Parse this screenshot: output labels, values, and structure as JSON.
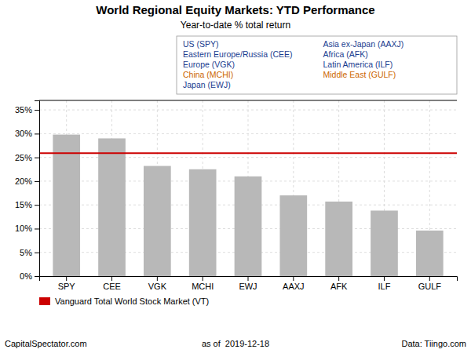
{
  "chart_data": {
    "type": "bar",
    "title": "World Regional Equity Markets: YTD Performance",
    "subtitle": "Year-to-date % total return",
    "categories": [
      "SPY",
      "CEE",
      "VGK",
      "MCHI",
      "EWJ",
      "AAXJ",
      "AFK",
      "ILF",
      "GULF"
    ],
    "values": [
      29.8,
      29.0,
      23.2,
      22.5,
      21.0,
      17.0,
      15.7,
      13.8,
      9.6
    ],
    "color": "#b8b8b8",
    "ylim": [
      0,
      37
    ],
    "yticks": [
      {
        "value": 0,
        "label": "0%"
      },
      {
        "value": 5,
        "label": "5%"
      },
      {
        "value": 10,
        "label": "10%"
      },
      {
        "value": 15,
        "label": "15%"
      },
      {
        "value": 20,
        "label": "20%"
      },
      {
        "value": 25,
        "label": "25%"
      },
      {
        "value": 30,
        "label": "30%"
      },
      {
        "value": 35,
        "label": "35%"
      }
    ],
    "grid": true,
    "reference_line": {
      "value": 25.9,
      "color": "#cc0000",
      "label": "Vanguard Total World Stock Market (VT)"
    },
    "annotations": [
      {
        "text": "US (SPY)",
        "color": "#1a3d8f"
      },
      {
        "text": "Eastern Europe/Russia (CEE)",
        "color": "#1a3d8f"
      },
      {
        "text": "Europe (VGK)",
        "color": "#1a3d8f"
      },
      {
        "text": "China (MCHI)",
        "color": "#cc6600"
      },
      {
        "text": "Japan (EWJ)",
        "color": "#1a3d8f"
      },
      {
        "text": "Asia ex-Japan (AAXJ)",
        "color": "#1a3d8f"
      },
      {
        "text": "Africa (AFK)",
        "color": "#1a3d8f"
      },
      {
        "text": "Latin America (ILF)",
        "color": "#1a3d8f"
      },
      {
        "text": "Middle East (GULF)",
        "color": "#cc6600"
      }
    ],
    "footer": [
      "CapitalSpectator.com",
      "as of  2019-12-18",
      "Data: Tiingo.com"
    ]
  }
}
